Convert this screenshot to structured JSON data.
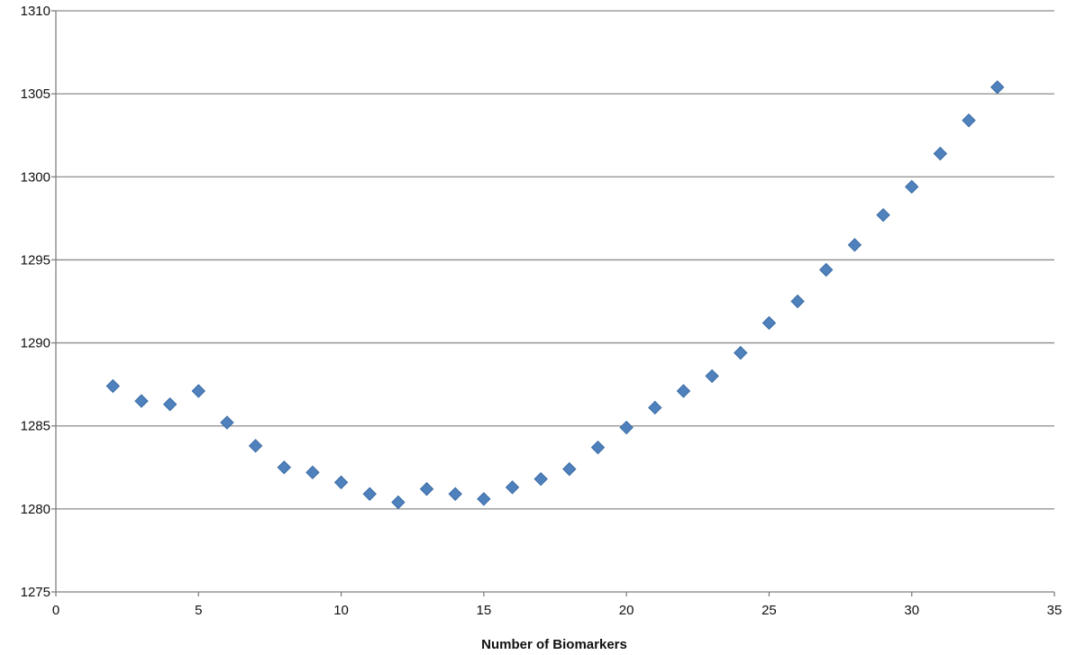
{
  "chart_data": {
    "type": "scatter",
    "title": "",
    "xlabel": "Number of Biomarkers",
    "ylabel": "",
    "xlim": [
      0,
      35
    ],
    "ylim": [
      1275,
      1310
    ],
    "x_ticks": [
      0,
      5,
      10,
      15,
      20,
      25,
      30,
      35
    ],
    "y_ticks": [
      1275,
      1280,
      1285,
      1290,
      1295,
      1300,
      1305,
      1310
    ],
    "grid": "horizontal",
    "legend": "none",
    "marker": "diamond",
    "colors": {
      "marker": "#4F81BD",
      "marker_edge": "#3A6BA5",
      "grid": "#8C8C8C",
      "axis": "#808080"
    },
    "series": [
      {
        "x": [
          2,
          3,
          4,
          5,
          6,
          7,
          8,
          9,
          10,
          11,
          12,
          13,
          14,
          15,
          16,
          17,
          18,
          19,
          20,
          21,
          22,
          23,
          24,
          25,
          26,
          27,
          28,
          29,
          30,
          31,
          32,
          33
        ],
        "y": [
          1287.4,
          1286.5,
          1286.3,
          1287.1,
          1285.2,
          1283.8,
          1282.5,
          1282.2,
          1281.6,
          1280.9,
          1280.4,
          1281.2,
          1280.9,
          1280.6,
          1281.3,
          1281.8,
          1282.4,
          1283.7,
          1284.9,
          1286.1,
          1287.1,
          1288.0,
          1289.4,
          1291.2,
          1292.5,
          1294.4,
          1295.9,
          1297.7,
          1299.4,
          1301.4,
          1303.4,
          1305.4
        ]
      }
    ]
  }
}
